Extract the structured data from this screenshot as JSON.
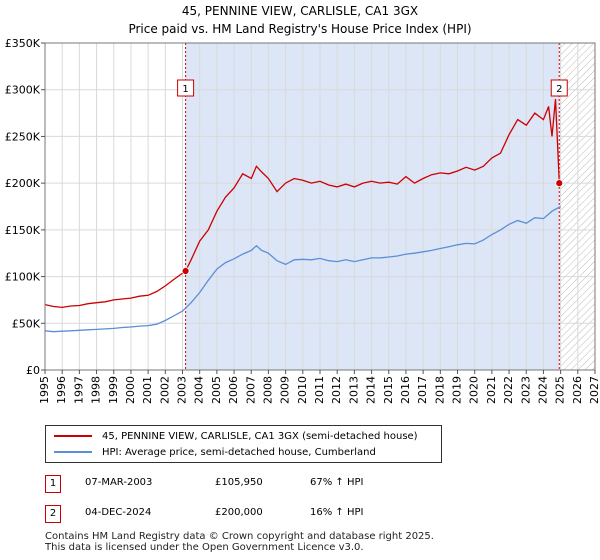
{
  "title_line1": "45, PENNINE VIEW, CARLISLE, CA1 3GX",
  "title_line2": "Price paid vs. HM Land Registry's House Price Index (HPI)",
  "colors": {
    "property": "#cc0000",
    "hpi": "#5b8fd6",
    "shade": "#dde6f7",
    "grid": "#d9d9d9",
    "marker_border": "#cc0000",
    "hatch": "#bbbbbb"
  },
  "chart_data": {
    "type": "line",
    "title": "45, PENNINE VIEW, CARLISLE, CA1 3GX — Price paid vs. HM Land Registry's House Price Index (HPI)",
    "xlim": [
      1995,
      2027
    ],
    "ylim": [
      0,
      350000
    ],
    "x_ticks": [
      1995,
      1996,
      1997,
      1998,
      1999,
      2000,
      2001,
      2002,
      2003,
      2004,
      2005,
      2006,
      2007,
      2008,
      2009,
      2010,
      2011,
      2012,
      2013,
      2014,
      2015,
      2016,
      2017,
      2018,
      2019,
      2020,
      2021,
      2022,
      2023,
      2024,
      2025,
      2026,
      2027
    ],
    "y_ticks": [
      0,
      50000,
      100000,
      150000,
      200000,
      250000,
      300000,
      350000
    ],
    "y_tick_labels": [
      "£0",
      "£50K",
      "£100K",
      "£150K",
      "£200K",
      "£250K",
      "£300K",
      "£350K"
    ],
    "shaded_range": [
      2003.18,
      2024.92
    ],
    "future_hatch_from": 2025.0,
    "series": [
      {
        "name": "45, PENNINE VIEW, CARLISLE, CA1 3GX (semi-detached house)",
        "x": [
          1995,
          1995.5,
          1996,
          1996.5,
          1997,
          1997.5,
          1998,
          1998.5,
          1999,
          1999.5,
          2000,
          2000.5,
          2001,
          2001.5,
          2002,
          2002.5,
          2003.18,
          2003.5,
          2004,
          2004.5,
          2005,
          2005.5,
          2006,
          2006.5,
          2007,
          2007.3,
          2007.6,
          2008,
          2008.5,
          2009,
          2009.5,
          2010,
          2010.5,
          2011,
          2011.5,
          2012,
          2012.5,
          2013,
          2013.5,
          2014,
          2014.5,
          2015,
          2015.5,
          2016,
          2016.5,
          2017,
          2017.5,
          2018,
          2018.5,
          2019,
          2019.5,
          2020,
          2020.5,
          2021,
          2021.5,
          2022,
          2022.5,
          2023,
          2023.5,
          2024,
          2024.3,
          2024.5,
          2024.7,
          2024.92
        ],
        "values": [
          70000,
          68000,
          67000,
          68500,
          69000,
          71000,
          72000,
          73000,
          75000,
          76000,
          77000,
          79000,
          80000,
          84000,
          90000,
          97000,
          105950,
          118000,
          138000,
          150000,
          170000,
          185000,
          195000,
          210000,
          205000,
          218000,
          212000,
          205000,
          191000,
          200000,
          205000,
          203000,
          200000,
          202000,
          198000,
          196000,
          199000,
          196000,
          200000,
          202000,
          200000,
          201000,
          199000,
          207000,
          200000,
          205000,
          209000,
          211000,
          210000,
          213000,
          217000,
          214000,
          218000,
          227000,
          232000,
          252000,
          268000,
          262000,
          275000,
          268000,
          282000,
          250000,
          290000,
          200000
        ]
      },
      {
        "name": "HPI: Average price, semi-detached house, Cumberland",
        "x": [
          1995,
          1995.5,
          1996,
          1996.5,
          1997,
          1997.5,
          1998,
          1998.5,
          1999,
          1999.5,
          2000,
          2000.5,
          2001,
          2001.5,
          2002,
          2002.5,
          2003,
          2003.5,
          2004,
          2004.5,
          2005,
          2005.5,
          2006,
          2006.5,
          2007,
          2007.3,
          2007.6,
          2008,
          2008.5,
          2009,
          2009.5,
          2010,
          2010.5,
          2011,
          2011.5,
          2012,
          2012.5,
          2013,
          2013.5,
          2014,
          2014.5,
          2015,
          2015.5,
          2016,
          2016.5,
          2017,
          2017.5,
          2018,
          2018.5,
          2019,
          2019.5,
          2020,
          2020.5,
          2021,
          2021.5,
          2022,
          2022.5,
          2023,
          2023.5,
          2024,
          2024.5,
          2025
        ],
        "values": [
          42000,
          41000,
          41500,
          42000,
          42500,
          43000,
          43500,
          44000,
          44500,
          45500,
          46000,
          47000,
          47500,
          49000,
          53000,
          58000,
          63000,
          72000,
          83000,
          96000,
          108000,
          115000,
          119000,
          124000,
          128000,
          133000,
          128000,
          125000,
          117000,
          113000,
          118000,
          118500,
          118000,
          119500,
          117000,
          116000,
          118000,
          116000,
          118000,
          120000,
          120000,
          121000,
          122000,
          124000,
          125000,
          126500,
          128000,
          130000,
          132000,
          134000,
          135500,
          135000,
          139000,
          145000,
          150000,
          156000,
          160000,
          157000,
          163000,
          162000,
          170000,
          175000
        ]
      }
    ],
    "sales": [
      {
        "label": "1",
        "x": 2003.18,
        "value": 105950
      },
      {
        "label": "2",
        "x": 2024.92,
        "value": 200000
      }
    ]
  },
  "legend": {
    "property_label": "45, PENNINE VIEW, CARLISLE, CA1 3GX (semi-detached house)",
    "hpi_label": "HPI: Average price, semi-detached house, Cumberland"
  },
  "transactions": [
    {
      "num": "1",
      "date": "07-MAR-2003",
      "price": "£105,950",
      "hpi": "67% ↑ HPI"
    },
    {
      "num": "2",
      "date": "04-DEC-2024",
      "price": "£200,000",
      "hpi": "16% ↑ HPI"
    }
  ],
  "footer_line1": "Contains HM Land Registry data © Crown copyright and database right 2025.",
  "footer_line2": "This data is licensed under the Open Government Licence v3.0."
}
